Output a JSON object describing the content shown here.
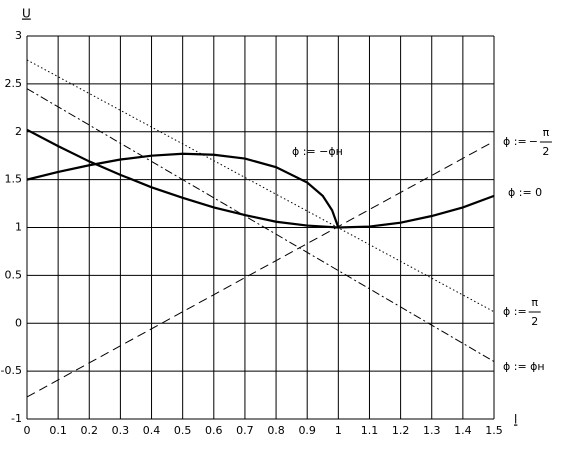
{
  "chart_data": {
    "type": "line",
    "y_label": "U",
    "x_label": "l",
    "xlim": [
      0,
      1.5
    ],
    "ylim": [
      -1,
      3
    ],
    "xticks": [
      0,
      0.1,
      0.2,
      0.3,
      0.4,
      0.5,
      0.6,
      0.7,
      0.8,
      0.9,
      1,
      1.1,
      1.2,
      1.3,
      1.4,
      1.5
    ],
    "yticks": [
      -1,
      -0.5,
      0,
      0.5,
      1,
      1.5,
      2,
      2.5,
      3
    ],
    "grid": true,
    "series": [
      {
        "label": [
          "ϕ := ",
          "π",
          "2"
        ],
        "minus": "−",
        "color": "#000000",
        "style": "dashed",
        "x": [
          0,
          1.5
        ],
        "values": [
          -0.77,
          1.9
        ]
      },
      {
        "name": "ϕ := 0",
        "color": "#000000",
        "style": "bold",
        "x": [
          0,
          0.1,
          0.2,
          0.3,
          0.4,
          0.5,
          0.6,
          0.7,
          0.8,
          0.9,
          1,
          1.1,
          1.2,
          1.3,
          1.4,
          1.5
        ],
        "values": [
          2.02,
          1.85,
          1.69,
          1.55,
          1.42,
          1.31,
          1.21,
          1.13,
          1.06,
          1.02,
          1.0,
          1.01,
          1.05,
          1.12,
          1.21,
          1.33
        ]
      },
      {
        "label": [
          "ϕ := ",
          "π",
          "2"
        ],
        "color": "#000000",
        "style": "dotted",
        "x": [
          0,
          1.5
        ],
        "values": [
          2.75,
          0.12
        ]
      },
      {
        "name": "ϕ := ϕн",
        "color": "#000000",
        "style": "dashdot",
        "x": [
          0,
          1.5
        ],
        "values": [
          2.45,
          -0.4
        ]
      },
      {
        "name": "ϕ := −ϕн",
        "color": "#000000",
        "style": "bold",
        "x": [
          0,
          0.1,
          0.2,
          0.3,
          0.4,
          0.5,
          0.6,
          0.7,
          0.8,
          0.9,
          0.95,
          0.98,
          1
        ],
        "values": [
          1.5,
          1.58,
          1.65,
          1.71,
          1.75,
          1.77,
          1.76,
          1.72,
          1.63,
          1.47,
          1.33,
          1.18,
          1.0
        ]
      }
    ]
  }
}
